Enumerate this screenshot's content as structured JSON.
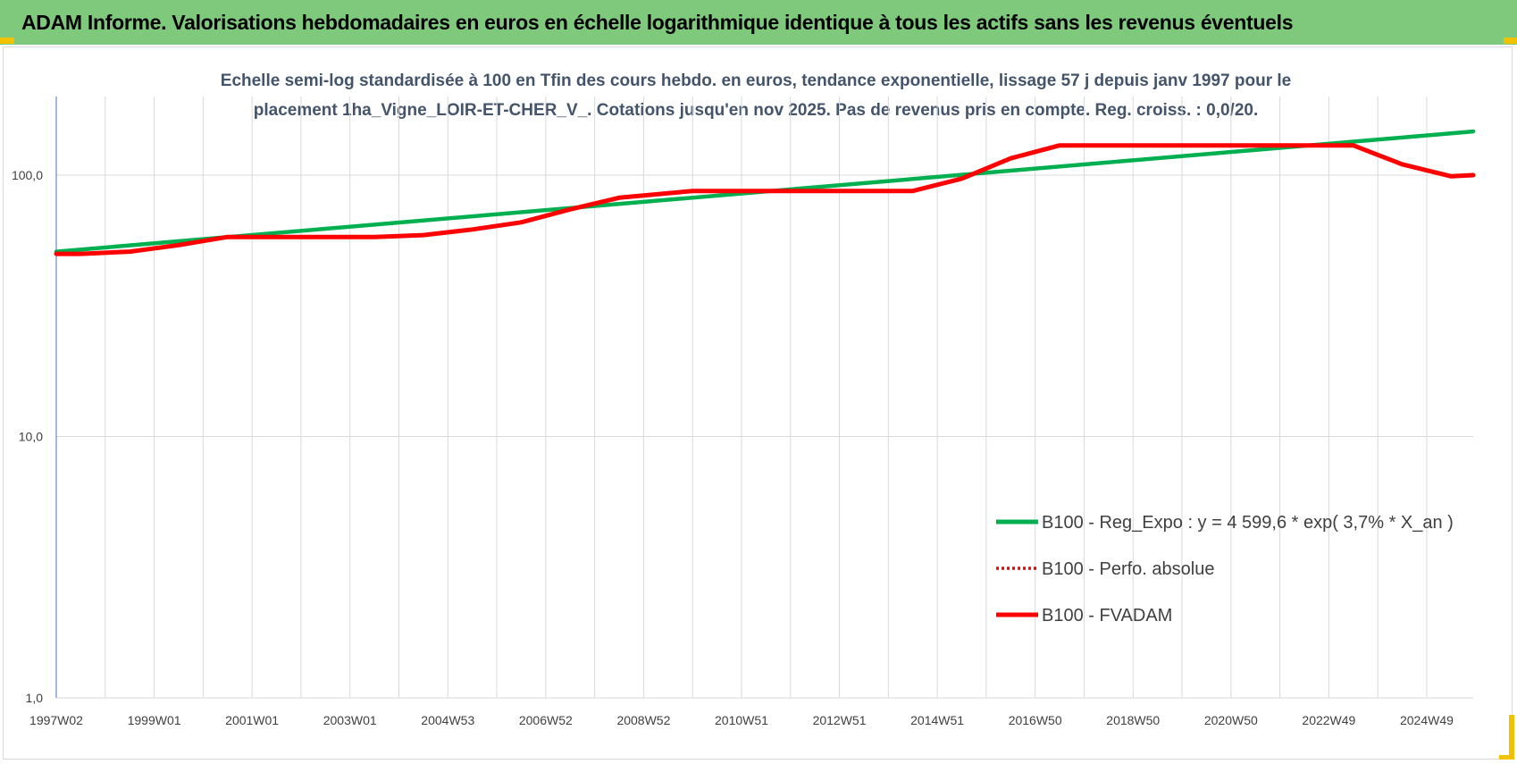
{
  "header": {
    "title": "ADAM Informe. Valorisations hebdomadaires en euros en échelle logarithmique identique à tous les actifs sans les revenus éventuels"
  },
  "colors": {
    "banner": "#7ec97b",
    "trend": "#00b050",
    "series": "#ff0000",
    "grid": "#d9d9d9",
    "axis": "#4472c4",
    "corner": "#f2c200"
  },
  "chart_data": {
    "type": "line",
    "title_lines": [
      "Echelle semi-log standardisée à 100 en Tfin des cours hebdo. en euros, tendance exponentielle, lissage 57 j depuis janv 1997 pour le",
      "placement 1ha_Vigne_LOIR-ET-CHER_V_. Cotations jusqu'en nov 2025. Pas de revenus pris en compte. Reg. croiss. : 0,0/20."
    ],
    "y_scale": "log",
    "ylim": [
      1,
      200
    ],
    "y_ticks": [
      {
        "value": 1,
        "label": "1,0"
      },
      {
        "value": 10,
        "label": "10,0"
      },
      {
        "value": 100,
        "label": "100,0"
      }
    ],
    "xlim": [
      1997.0,
      2025.95
    ],
    "x_ticks": [
      {
        "x": 1997.0,
        "label": "1997W02"
      },
      {
        "x": 1999.0,
        "label": "1999W01"
      },
      {
        "x": 2001.0,
        "label": "2001W01"
      },
      {
        "x": 2003.0,
        "label": "2003W01"
      },
      {
        "x": 2005.0,
        "label": "2004W53"
      },
      {
        "x": 2007.0,
        "label": "2006W52"
      },
      {
        "x": 2009.0,
        "label": "2008W52"
      },
      {
        "x": 2011.0,
        "label": "2010W51"
      },
      {
        "x": 2013.0,
        "label": "2012W51"
      },
      {
        "x": 2015.0,
        "label": "2014W51"
      },
      {
        "x": 2017.0,
        "label": "2016W50"
      },
      {
        "x": 2019.0,
        "label": "2018W50"
      },
      {
        "x": 2021.0,
        "label": "2020W50"
      },
      {
        "x": 2023.0,
        "label": "2022W49"
      },
      {
        "x": 2025.0,
        "label": "2024W49"
      }
    ],
    "grid": true,
    "legend_position": "bottom-right",
    "series": [
      {
        "name": "B100 - Reg_Expo : y = 4 599,6 * exp( 3,7% *  X_an )",
        "style": "solid",
        "color": "#00b050",
        "x": [
          1997.0,
          2025.95
        ],
        "y": [
          51,
          147
        ]
      },
      {
        "name": "B100 - Perfo. absolue",
        "style": "dotted",
        "color": "#ff0000",
        "x": [],
        "y": []
      },
      {
        "name": "B100 - FVADAM",
        "style": "solid",
        "color": "#ff0000",
        "x": [
          1997.0,
          1997.5,
          1998.5,
          1999.5,
          2000.5,
          2002.0,
          2003.5,
          2004.5,
          2005.5,
          2006.5,
          2007.5,
          2008.5,
          2010.0,
          2012.0,
          2014.5,
          2015.5,
          2016.5,
          2017.5,
          2019.0,
          2021.0,
          2023.5,
          2024.5,
          2025.5,
          2025.95
        ],
        "y": [
          50,
          50,
          51,
          54,
          58,
          58,
          58,
          59,
          62,
          66,
          74,
          82,
          87,
          87,
          87,
          97,
          116,
          130,
          130,
          130,
          130,
          110,
          99,
          100
        ]
      }
    ]
  }
}
